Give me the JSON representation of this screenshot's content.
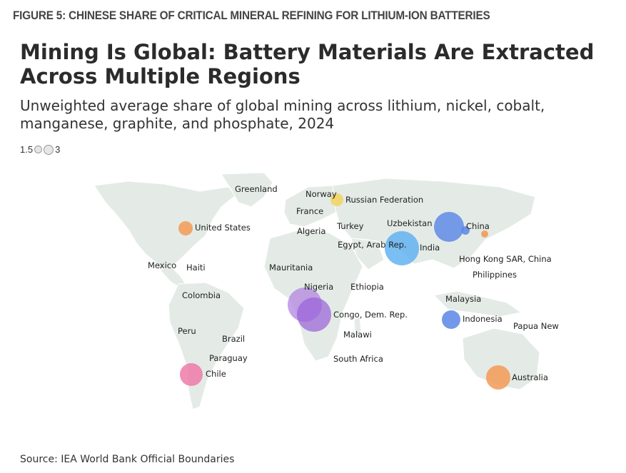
{
  "figure_label": "FIGURE 5: CHINESE SHARE OF CRITICAL MINERAL REFINING FOR LITHIUM-ION BATTERIES",
  "title": "Mining Is Global: Battery Materials Are Extracted Across Multiple Regions",
  "subtitle": "Unweighted average share of global mining across lithium, nickel, cobalt, manganese, graphite, and phosphate, 2024",
  "size_legend": {
    "min": "1.5",
    "max": "3"
  },
  "source": "Source: IEA World Bank Official Boundaries",
  "colors": {
    "land": "#e4ebe6",
    "orange": "#f39a55",
    "yellow": "#f2d35e",
    "purple": "#b07fe0",
    "blue": "#5b86e5",
    "lightblue": "#5eb0f0",
    "pink": "#ef7aa8"
  },
  "map": {
    "labels": [
      "Greenland",
      "Norway",
      "Russian Federation",
      "France",
      "United States",
      "Algeria",
      "Turkey",
      "Uzbekistan",
      "China",
      "Egypt, Arab Rep.",
      "India",
      "Mexico",
      "Haiti",
      "Mauritania",
      "Hong Kong SAR, China",
      "Philippines",
      "Nigeria",
      "Ethiopia",
      "Colombia",
      "Malaysia",
      "Congo, Dem. Rep.",
      "Indonesia",
      "Papua New",
      "Peru",
      "Malawi",
      "Brazil",
      "Paraguay",
      "South Africa",
      "Chile",
      "Australia"
    ],
    "bubbles": [
      {
        "country": "Norway",
        "color": "yellow"
      },
      {
        "country": "United States",
        "color": "orange"
      },
      {
        "country": "China",
        "color": "blue"
      },
      {
        "country": "China",
        "color": "blue"
      },
      {
        "country": "China",
        "color": "orange"
      },
      {
        "country": "India",
        "color": "lightblue"
      },
      {
        "country": "Nigeria",
        "color": "purple"
      },
      {
        "country": "Congo, Dem. Rep.",
        "color": "purple"
      },
      {
        "country": "Indonesia",
        "color": "blue"
      },
      {
        "country": "Chile",
        "color": "pink"
      },
      {
        "country": "Australia",
        "color": "orange"
      }
    ]
  }
}
